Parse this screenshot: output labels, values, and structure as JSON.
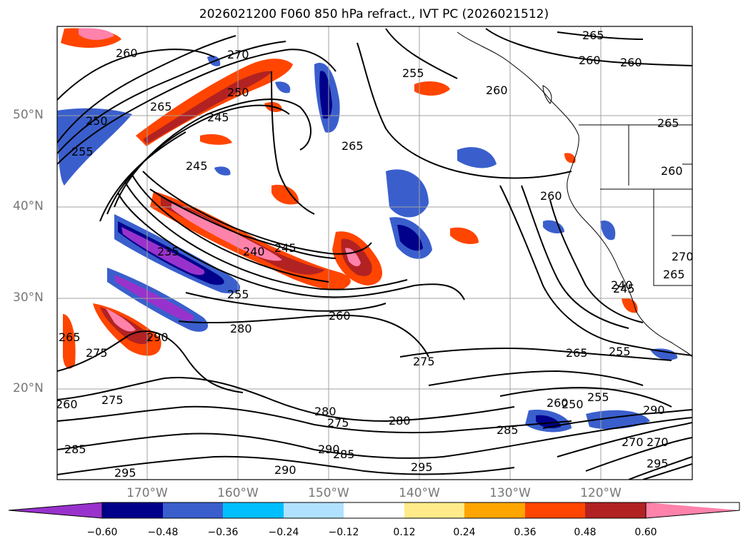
{
  "title": "2026021200 F060 850 hPa refract., IVT PC (2026021512)",
  "lat_labels": [
    "50°N",
    "40°N",
    "30°N",
    "20°N"
  ],
  "lon_labels": [
    "170°W",
    "160°W",
    "150°W",
    "140°W",
    "130°W",
    "120°W"
  ],
  "colorbar": {
    "ticks": [
      "−0.60",
      "−0.48",
      "−0.36",
      "−0.24",
      "−0.12",
      "0.12",
      "0.24",
      "0.36",
      "0.48",
      "0.60"
    ],
    "colors": [
      "#9932cc",
      "#00008b",
      "#3a5fcd",
      "#00bfff",
      "#b0e2ff",
      "#ffffff",
      "#ffeb8a",
      "#ffa500",
      "#ff4500",
      "#b22222",
      "#ff82ab"
    ]
  },
  "contour_labels": [
    "260",
    "265",
    "260",
    "270",
    "250",
    "245",
    "265",
    "260",
    "255",
    "255",
    "260",
    "265",
    "245",
    "265",
    "250",
    "260",
    "240",
    "245",
    "235",
    "255",
    "275",
    "260",
    "280",
    "290",
    "275",
    "265",
    "260",
    "265",
    "270",
    "260",
    "255",
    "245",
    "250",
    "255",
    "275",
    "280",
    "275",
    "280",
    "290",
    "285",
    "295",
    "290",
    "295",
    "285",
    "265",
    "260",
    "270",
    "240",
    "285",
    "290",
    "270",
    "295"
  ]
}
